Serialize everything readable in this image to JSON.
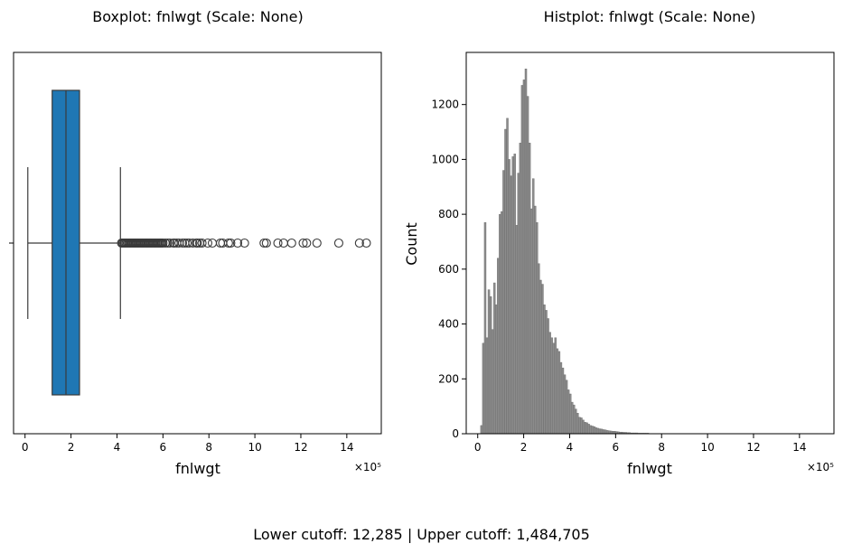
{
  "chart_data": [
    {
      "type": "boxplot",
      "title": "Boxplot: fnlwgt (Scale: None)",
      "xlabel": "fnlwgt",
      "ylabel": "",
      "x_scale_note": "×10⁵",
      "xlim": [
        -0.5,
        15.5
      ],
      "xticks": [
        0,
        2,
        4,
        6,
        8,
        10,
        12,
        14
      ],
      "box_color": "#1f77b4",
      "whisker_low": 0.12,
      "q1": 1.18,
      "median": 1.78,
      "q3": 2.37,
      "whisker_high": 4.15,
      "outliers": [
        4.2,
        4.25,
        4.3,
        4.35,
        4.4,
        4.45,
        4.5,
        4.55,
        4.6,
        4.65,
        4.7,
        4.75,
        4.8,
        4.85,
        4.9,
        4.95,
        5.0,
        5.05,
        5.1,
        5.15,
        5.2,
        5.25,
        5.3,
        5.35,
        5.4,
        5.45,
        5.5,
        5.55,
        5.6,
        5.65,
        5.7,
        5.75,
        5.8,
        5.85,
        5.9,
        5.95,
        6.0,
        6.1,
        6.2,
        6.3,
        6.45,
        6.5,
        6.6,
        6.7,
        6.85,
        6.95,
        7.05,
        7.15,
        7.3,
        7.45,
        7.5,
        7.6,
        7.7,
        7.95,
        8.15,
        8.5,
        8.6,
        8.85,
        8.95,
        9.25,
        9.55,
        10.4,
        10.5,
        11.0,
        11.25,
        11.6,
        12.1,
        12.25,
        12.7,
        13.65,
        14.55,
        14.85
      ]
    },
    {
      "type": "histogram",
      "title": "Histplot: fnlwgt (Scale: None)",
      "xlabel": "fnlwgt",
      "ylabel": "Count",
      "x_scale_note": "×10⁵",
      "xlim": [
        -0.5,
        15.5
      ],
      "ylim": [
        0,
        1390
      ],
      "xticks": [
        0,
        2,
        4,
        6,
        8,
        10,
        12,
        14
      ],
      "yticks": [
        0,
        200,
        400,
        600,
        800,
        1000,
        1200
      ],
      "bar_color": "#808080",
      "bin_width": 0.0805,
      "bins_start": 0.1228,
      "counts": [
        30,
        330,
        770,
        350,
        525,
        500,
        380,
        550,
        470,
        640,
        800,
        810,
        960,
        1110,
        1150,
        1000,
        940,
        1010,
        1020,
        760,
        950,
        1060,
        1270,
        1290,
        1330,
        1230,
        1060,
        820,
        930,
        830,
        770,
        620,
        560,
        545,
        470,
        450,
        420,
        370,
        350,
        330,
        350,
        310,
        300,
        260,
        240,
        215,
        195,
        160,
        145,
        115,
        105,
        90,
        75,
        60,
        58,
        50,
        42,
        40,
        35,
        30,
        28,
        26,
        22,
        20,
        18,
        17,
        15,
        14,
        12,
        11,
        10,
        9,
        9,
        8,
        7,
        6,
        6,
        5,
        5,
        4,
        4,
        3,
        3,
        3,
        3,
        2,
        2,
        2,
        2,
        2,
        2,
        1,
        1,
        1,
        1,
        1,
        1,
        1,
        1,
        1,
        1,
        1,
        1,
        1,
        1,
        1,
        1,
        1,
        1,
        1,
        1,
        1,
        1,
        1,
        1,
        1,
        1,
        1,
        1,
        1,
        1,
        1,
        1,
        1,
        1,
        1,
        1,
        1,
        1,
        1,
        1,
        1,
        1,
        1,
        1,
        1,
        1,
        1,
        1,
        1,
        1,
        1,
        1,
        1,
        1,
        1,
        1,
        1,
        1,
        1,
        1,
        1,
        1,
        1,
        1,
        1,
        1,
        1,
        1,
        1,
        1,
        1,
        1,
        1,
        1,
        1,
        1,
        1,
        1,
        1,
        1,
        1,
        1,
        1,
        1,
        1,
        1,
        1,
        1,
        1,
        1,
        1
      ]
    }
  ],
  "footer": "Lower cutoff: 12,285 | Upper cutoff: 1,484,705"
}
